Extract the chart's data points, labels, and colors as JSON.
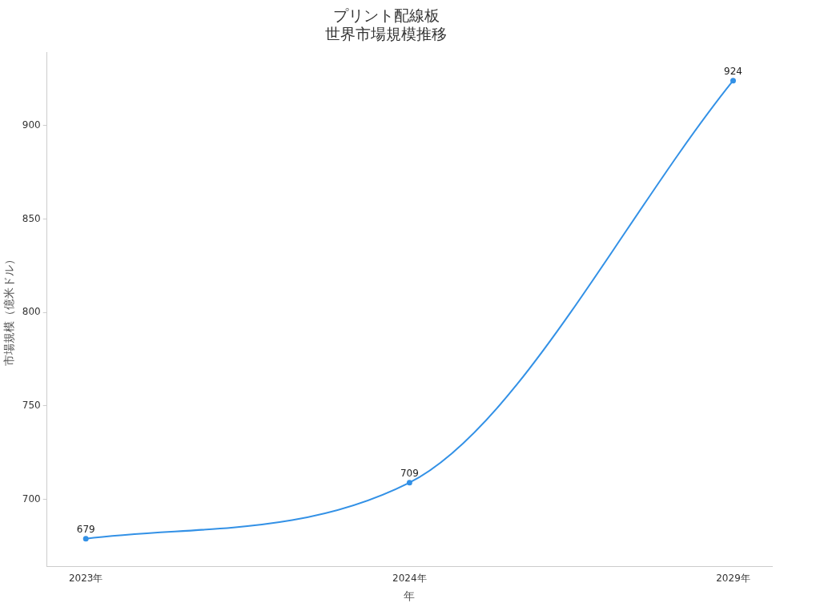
{
  "chart_data": {
    "type": "line",
    "title": "プリント配線板",
    "subtitle": "世界市場規模推移",
    "xlabel": "年",
    "ylabel": "市場規模（億米ドル）",
    "categories": [
      "2023年",
      "2024年",
      "2029年"
    ],
    "series": [
      {
        "color": "#3391e6",
        "values": [
          679,
          709,
          924
        ]
      }
    ],
    "ylim": [
      664,
      939
    ],
    "yticks": [
      700,
      750,
      800,
      850,
      900
    ],
    "grid": false,
    "legend": false,
    "marker": "circle",
    "line_style": "solid",
    "data_labels": true
  }
}
